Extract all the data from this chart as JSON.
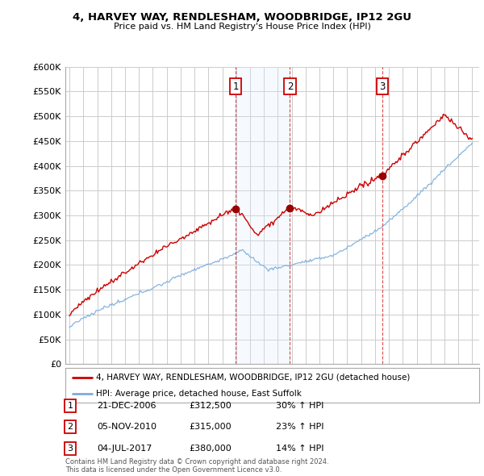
{
  "title": "4, HARVEY WAY, RENDLESHAM, WOODBRIDGE, IP12 2GU",
  "subtitle": "Price paid vs. HM Land Registry's House Price Index (HPI)",
  "ylabel_ticks": [
    "£0",
    "£50K",
    "£100K",
    "£150K",
    "£200K",
    "£250K",
    "£300K",
    "£350K",
    "£400K",
    "£450K",
    "£500K",
    "£550K",
    "£600K"
  ],
  "ylim": [
    0,
    600000
  ],
  "ytick_values": [
    0,
    50000,
    100000,
    150000,
    200000,
    250000,
    300000,
    350000,
    400000,
    450000,
    500000,
    550000,
    600000
  ],
  "sale_labels": [
    "1",
    "2",
    "3"
  ],
  "legend_entries": [
    "4, HARVEY WAY, RENDLESHAM, WOODBRIDGE, IP12 2GU (detached house)",
    "HPI: Average price, detached house, East Suffolk"
  ],
  "table_rows": [
    {
      "label": "1",
      "date": "21-DEC-2006",
      "price": "£312,500",
      "change": "30% ↑ HPI"
    },
    {
      "label": "2",
      "date": "05-NOV-2010",
      "price": "£315,000",
      "change": "23% ↑ HPI"
    },
    {
      "label": "3",
      "date": "04-JUL-2017",
      "price": "£380,000",
      "change": "14% ↑ HPI"
    }
  ],
  "footer": "Contains HM Land Registry data © Crown copyright and database right 2024.\nThis data is licensed under the Open Government Licence v3.0.",
  "sale_line_color": "#cc0000",
  "hpi_line_color": "#7aacde",
  "shade_color": "#ddeeff",
  "marker_color": "#cc0000",
  "vline_color": "#cc0000",
  "grid_color": "#cccccc",
  "background_color": "#ffffff",
  "box_color": "#cc0000"
}
